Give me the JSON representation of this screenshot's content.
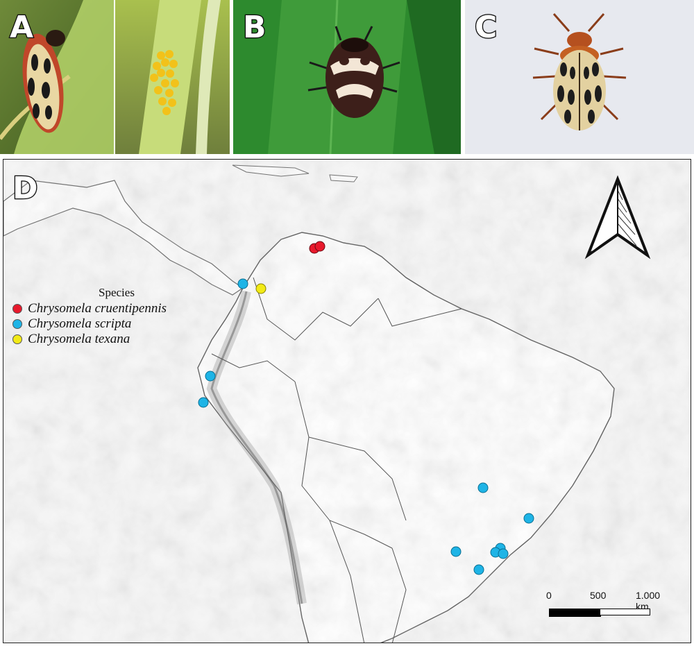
{
  "panels": {
    "a": {
      "label": "A"
    },
    "b": {
      "label": "B"
    },
    "c": {
      "label": "C"
    },
    "d": {
      "label": "D"
    }
  },
  "legend": {
    "title": "Species",
    "items": [
      {
        "label": "Chrysomela cruentipennis",
        "color": "#e8192c"
      },
      {
        "label": "Chrysomela scripta",
        "color": "#1eb4e6"
      },
      {
        "label": "Chrysomela texana",
        "color": "#f2ea16"
      }
    ]
  },
  "scale": {
    "t0": "0",
    "t1": "500",
    "t2": "1.000 km"
  },
  "north_arrow": {
    "icon": "north-arrow-icon"
  },
  "occurrences": {
    "cruentipennis": [
      {
        "place": "northern Venezuela coast 1"
      },
      {
        "place": "northern Venezuela coast 2"
      }
    ],
    "scripta": [
      {
        "place": "Colombia"
      },
      {
        "place": "Ecuador north"
      },
      {
        "place": "Ecuador south"
      },
      {
        "place": "Brazil central"
      },
      {
        "place": "Brazil southeast"
      },
      {
        "place": "Paraguay border"
      },
      {
        "place": "Sao Paulo 1"
      },
      {
        "place": "Sao Paulo 2"
      },
      {
        "place": "Sao Paulo 3"
      },
      {
        "place": "Parana"
      }
    ],
    "texana": [
      {
        "place": "Colombia"
      }
    ]
  }
}
